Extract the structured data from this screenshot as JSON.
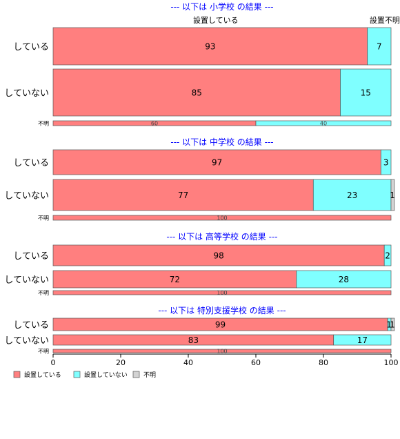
{
  "colors": {
    "s1": "#FF7F7F",
    "s2": "#7FFFFF",
    "s3": "#D3D3D3",
    "title": "#0000FF"
  },
  "chart_data": [
    {
      "type": "bar",
      "title": "--- 以下は 小学校 の結果 ---",
      "column_labels": [
        "設置している",
        "設置不明"
      ],
      "categories": [
        "している",
        "していない",
        "不明"
      ],
      "series": [
        {
          "name": "設置している",
          "values": [
            93,
            85,
            60
          ]
        },
        {
          "name": "設置していない",
          "values": [
            7,
            15,
            40
          ]
        },
        {
          "name": "不明",
          "values": [
            0,
            0,
            0
          ]
        }
      ]
    },
    {
      "type": "bar",
      "title": "--- 以下は 中学校 の結果 ---",
      "categories": [
        "している",
        "していない",
        "不明"
      ],
      "series": [
        {
          "name": "設置している",
          "values": [
            97,
            77,
            100
          ]
        },
        {
          "name": "設置していない",
          "values": [
            3,
            23,
            0
          ]
        },
        {
          "name": "不明",
          "values": [
            0,
            1,
            0
          ]
        }
      ]
    },
    {
      "type": "bar",
      "title": "--- 以下は 高等学校 の結果 ---",
      "categories": [
        "している",
        "していない",
        "不明"
      ],
      "series": [
        {
          "name": "設置している",
          "values": [
            98,
            72,
            100
          ]
        },
        {
          "name": "設置していない",
          "values": [
            2,
            28,
            0
          ]
        },
        {
          "name": "不明",
          "values": [
            0,
            0,
            0
          ]
        }
      ]
    },
    {
      "type": "bar",
      "title": "--- 以下は 特別支援学校 の結果 ---",
      "categories": [
        "している",
        "していない",
        "不明"
      ],
      "series": [
        {
          "name": "設置している",
          "values": [
            99,
            83,
            100
          ]
        },
        {
          "name": "設置していない",
          "values": [
            1,
            17,
            0
          ]
        },
        {
          "name": "不明",
          "values": [
            1,
            0,
            0
          ]
        }
      ]
    }
  ],
  "x_axis": {
    "xlim": [
      0,
      100
    ],
    "ticks": [
      0,
      20,
      40,
      60,
      80,
      100
    ]
  },
  "legend": {
    "placement": "bottom-left",
    "items": [
      "設置している",
      "設置していない",
      "不明"
    ]
  }
}
